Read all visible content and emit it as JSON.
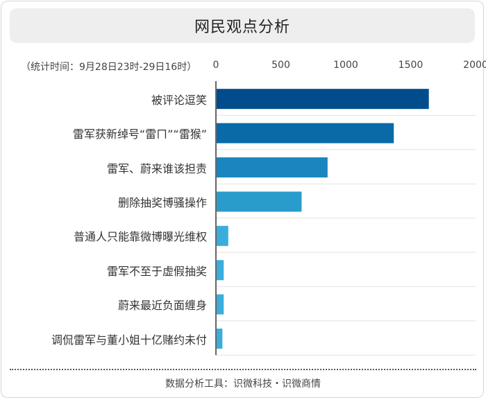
{
  "chart_data": {
    "type": "bar",
    "orientation": "horizontal",
    "title": "网民观点分析",
    "subtitle": "（统计时间：9月28日23时-29日16时）",
    "categories": [
      "被评论逗笑",
      "雷军获新绰号“雷ㄇ”“雷猴”",
      "雷军、蔚来谁该担责",
      "删除抽奖博骚操作",
      "普通人只能靠微博曝光维权",
      "雷军不至于虚假抽奖",
      "蔚来最近负面缠身",
      "调侃雷军与董小姐十亿赌约未付"
    ],
    "values": [
      1640,
      1370,
      860,
      660,
      95,
      60,
      60,
      50
    ],
    "xlim": [
      0,
      2000
    ],
    "xticks": [
      "0",
      "500",
      "1000",
      "1500",
      "2000"
    ],
    "grid": true,
    "colors": [
      "#004c8c",
      "#0a6aa8",
      "#1a86bf",
      "#2a9ccc",
      "#3aaddc",
      "#3aaddc",
      "#3aaddc",
      "#3aaddc"
    ]
  },
  "footer": "数据分析工具：识微科技・识微商情"
}
